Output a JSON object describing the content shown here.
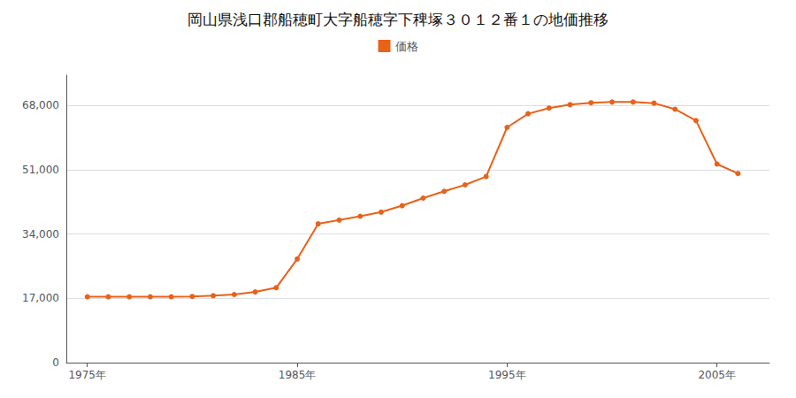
{
  "chart_data": {
    "type": "line",
    "title": "岡山県浅口郡船穂町大字船穂字下稗塚３０１２番１の地価推移",
    "x": [
      1975,
      1976,
      1977,
      1978,
      1979,
      1980,
      1981,
      1982,
      1983,
      1984,
      1985,
      1986,
      1987,
      1988,
      1989,
      1990,
      1991,
      1992,
      1993,
      1994,
      1995,
      1996,
      1997,
      1998,
      1999,
      2000,
      2001,
      2002,
      2003,
      2004,
      2005,
      2006
    ],
    "series": [
      {
        "name": "価格",
        "color": "#E8621A",
        "marker": "circle",
        "values": [
          17400,
          17400,
          17400,
          17400,
          17400,
          17500,
          17700,
          18000,
          18700,
          19800,
          27400,
          36700,
          37700,
          38700,
          39800,
          41500,
          43500,
          45300,
          47000,
          49200,
          62200,
          65800,
          67300,
          68200,
          68700,
          68900,
          68900,
          68600,
          67000,
          64000,
          52500,
          50000
        ]
      }
    ],
    "xlim": [
      1974.0,
      2007.5
    ],
    "xticks": [
      {
        "value": 1975,
        "label": "1975年"
      },
      {
        "value": 1985,
        "label": "1985年"
      },
      {
        "value": 1995,
        "label": "1995年"
      },
      {
        "value": 2005,
        "label": "2005年"
      }
    ],
    "ylim": [
      0,
      76000
    ],
    "yticks": [
      0,
      {
        "value": 17000,
        "label": "17,000"
      },
      {
        "value": 34000,
        "label": "34,000"
      },
      {
        "value": 51000,
        "label": "51,000"
      },
      {
        "value": 68000,
        "label": "68,000"
      }
    ],
    "grid": true,
    "legend": "top"
  }
}
